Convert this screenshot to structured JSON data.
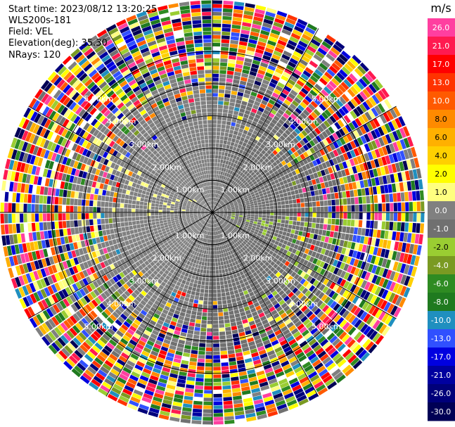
{
  "header": {
    "start_time": "Start time: 2023/08/12 13:20:25",
    "instrument": "WLS200s-181",
    "field": "Field: VEL",
    "elevation": "Elevation(deg): 35.30",
    "nrays": "NRays: 120"
  },
  "colorbar": {
    "unit": "m/s",
    "ticks": [
      "26.0",
      "21.0",
      "17.0",
      "13.0",
      "10.0",
      "8.0",
      "6.0",
      "4.0",
      "2.0",
      "1.0",
      "0.0",
      "-1.0",
      "-2.0",
      "-4.0",
      "-6.0",
      "-8.0",
      "-10.0",
      "-13.0",
      "-17.0",
      "-21.0",
      "-26.0",
      "-30.0"
    ],
    "colors": [
      "#ff3fa0",
      "#ff1a50",
      "#ff0000",
      "#ff3300",
      "#ff5a00",
      "#ff8a00",
      "#ffb000",
      "#ffd000",
      "#ffff00",
      "#ffff80",
      "#808080",
      "#707070",
      "#9acd32",
      "#7a9a22",
      "#2e8b22",
      "#1f7a1f",
      "#1f8fbf",
      "#3050ff",
      "#0000e0",
      "#0000a0",
      "#00007a",
      "#000055"
    ],
    "scale_top": 30.0,
    "scale_bottom": -30.0
  },
  "chart_data": {
    "type": "heatmap",
    "subtype": "polar-ppi",
    "field": "VEL",
    "units": "m/s",
    "nrays": 120,
    "range_rings_km": [
      1.0,
      2.0,
      3.0,
      4.0,
      5.0
    ],
    "ring_labels": [
      "1.00km",
      "2.00km",
      "3.00km",
      "4.00km",
      "5.00km"
    ],
    "spokes_deg": [
      0,
      30,
      60,
      90,
      120,
      150,
      180,
      210,
      240,
      270,
      300,
      330
    ],
    "max_range_km": 6.6,
    "velocity_range": [
      -30.0,
      26.0
    ],
    "pattern": {
      "near_range_west_mps": 2.0,
      "near_range_east_mps": -2.0,
      "mid_range_north_mps": 0.0,
      "mid_range_south_mps": -1.0,
      "far_range": "noise"
    }
  }
}
